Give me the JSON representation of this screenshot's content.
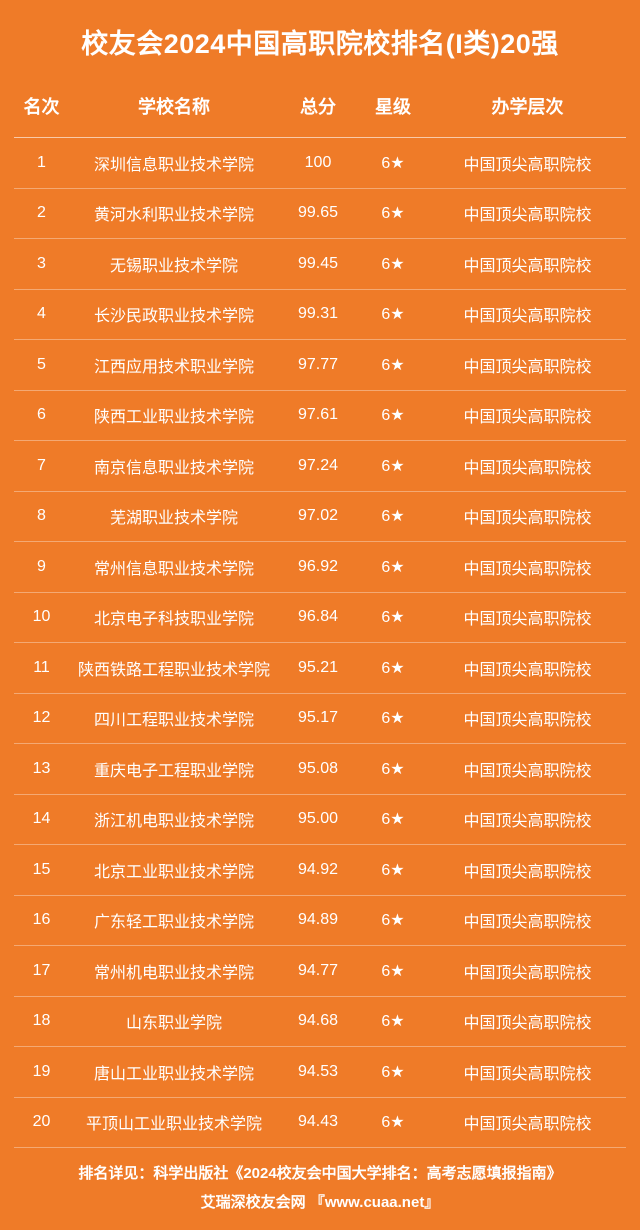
{
  "colors": {
    "background": "#ef7b28",
    "text": "#ffffff",
    "row_border": "rgba(255,255,255,0.35)",
    "header_border": "rgba(255,255,255,0.6)"
  },
  "title": "校友会2024中国高职院校排名(I类)20强",
  "columns": {
    "rank": "名次",
    "name": "学校名称",
    "score": "总分",
    "star": "星级",
    "level": "办学层次"
  },
  "rows": [
    {
      "rank": "1",
      "name": "深圳信息职业技术学院",
      "score": "100",
      "star": "6★",
      "level": "中国顶尖高职院校"
    },
    {
      "rank": "2",
      "name": "黄河水利职业技术学院",
      "score": "99.65",
      "star": "6★",
      "level": "中国顶尖高职院校"
    },
    {
      "rank": "3",
      "name": "无锡职业技术学院",
      "score": "99.45",
      "star": "6★",
      "level": "中国顶尖高职院校"
    },
    {
      "rank": "4",
      "name": "长沙民政职业技术学院",
      "score": "99.31",
      "star": "6★",
      "level": "中国顶尖高职院校"
    },
    {
      "rank": "5",
      "name": "江西应用技术职业学院",
      "score": "97.77",
      "star": "6★",
      "level": "中国顶尖高职院校"
    },
    {
      "rank": "6",
      "name": "陕西工业职业技术学院",
      "score": "97.61",
      "star": "6★",
      "level": "中国顶尖高职院校"
    },
    {
      "rank": "7",
      "name": "南京信息职业技术学院",
      "score": "97.24",
      "star": "6★",
      "level": "中国顶尖高职院校"
    },
    {
      "rank": "8",
      "name": "芜湖职业技术学院",
      "score": "97.02",
      "star": "6★",
      "level": "中国顶尖高职院校"
    },
    {
      "rank": "9",
      "name": "常州信息职业技术学院",
      "score": "96.92",
      "star": "6★",
      "level": "中国顶尖高职院校"
    },
    {
      "rank": "10",
      "name": "北京电子科技职业学院",
      "score": "96.84",
      "star": "6★",
      "level": "中国顶尖高职院校"
    },
    {
      "rank": "11",
      "name": "陕西铁路工程职业技术学院",
      "score": "95.21",
      "star": "6★",
      "level": "中国顶尖高职院校"
    },
    {
      "rank": "12",
      "name": "四川工程职业技术学院",
      "score": "95.17",
      "star": "6★",
      "level": "中国顶尖高职院校"
    },
    {
      "rank": "13",
      "name": "重庆电子工程职业学院",
      "score": "95.08",
      "star": "6★",
      "level": "中国顶尖高职院校"
    },
    {
      "rank": "14",
      "name": "浙江机电职业技术学院",
      "score": "95.00",
      "star": "6★",
      "level": "中国顶尖高职院校"
    },
    {
      "rank": "15",
      "name": "北京工业职业技术学院",
      "score": "94.92",
      "star": "6★",
      "level": "中国顶尖高职院校"
    },
    {
      "rank": "16",
      "name": "广东轻工职业技术学院",
      "score": "94.89",
      "star": "6★",
      "level": "中国顶尖高职院校"
    },
    {
      "rank": "17",
      "name": "常州机电职业技术学院",
      "score": "94.77",
      "star": "6★",
      "level": "中国顶尖高职院校"
    },
    {
      "rank": "18",
      "name": "山东职业学院",
      "score": "94.68",
      "star": "6★",
      "level": "中国顶尖高职院校"
    },
    {
      "rank": "19",
      "name": "唐山工业职业技术学院",
      "score": "94.53",
      "star": "6★",
      "level": "中国顶尖高职院校"
    },
    {
      "rank": "20",
      "name": "平顶山工业职业技术学院",
      "score": "94.43",
      "star": "6★",
      "level": "中国顶尖高职院校"
    }
  ],
  "footer": {
    "line1": "排名详见：科学出版社《2024校友会中国大学排名：高考志愿填报指南》",
    "line2": "艾瑞深校友会网 『www.cuaa.net』"
  }
}
